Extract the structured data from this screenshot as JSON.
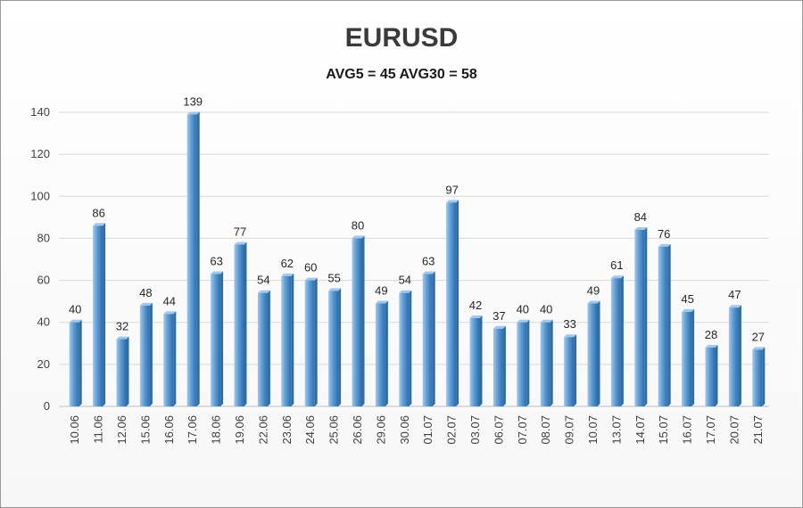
{
  "chart_data": {
    "type": "bar",
    "title": "EURUSD",
    "subtitle": "AVG5 = 45 AVG30 = 58",
    "categories": [
      "10.06",
      "11.06",
      "12.06",
      "15.06",
      "16.06",
      "17.06",
      "18.06",
      "19.06",
      "22.06",
      "23.06",
      "24.06",
      "25.06",
      "26.06",
      "29.06",
      "30.06",
      "01.07",
      "02.07",
      "03.07",
      "06.07",
      "07.07",
      "08.07",
      "09.07",
      "10.07",
      "13.07",
      "14.07",
      "15.07",
      "16.07",
      "17.07",
      "20.07",
      "21.07"
    ],
    "values": [
      40,
      86,
      32,
      48,
      44,
      139,
      63,
      77,
      54,
      62,
      60,
      55,
      80,
      49,
      54,
      63,
      97,
      42,
      37,
      40,
      40,
      33,
      49,
      61,
      84,
      76,
      45,
      28,
      47,
      27
    ],
    "ylim": [
      0,
      140
    ],
    "yticks": [
      0,
      20,
      40,
      60,
      80,
      100,
      120,
      140
    ],
    "grid": true,
    "bar_color": "#5b9bd5",
    "bar_color_dark": "#2e6da8",
    "bar_color_light": "#9fc8ee"
  }
}
